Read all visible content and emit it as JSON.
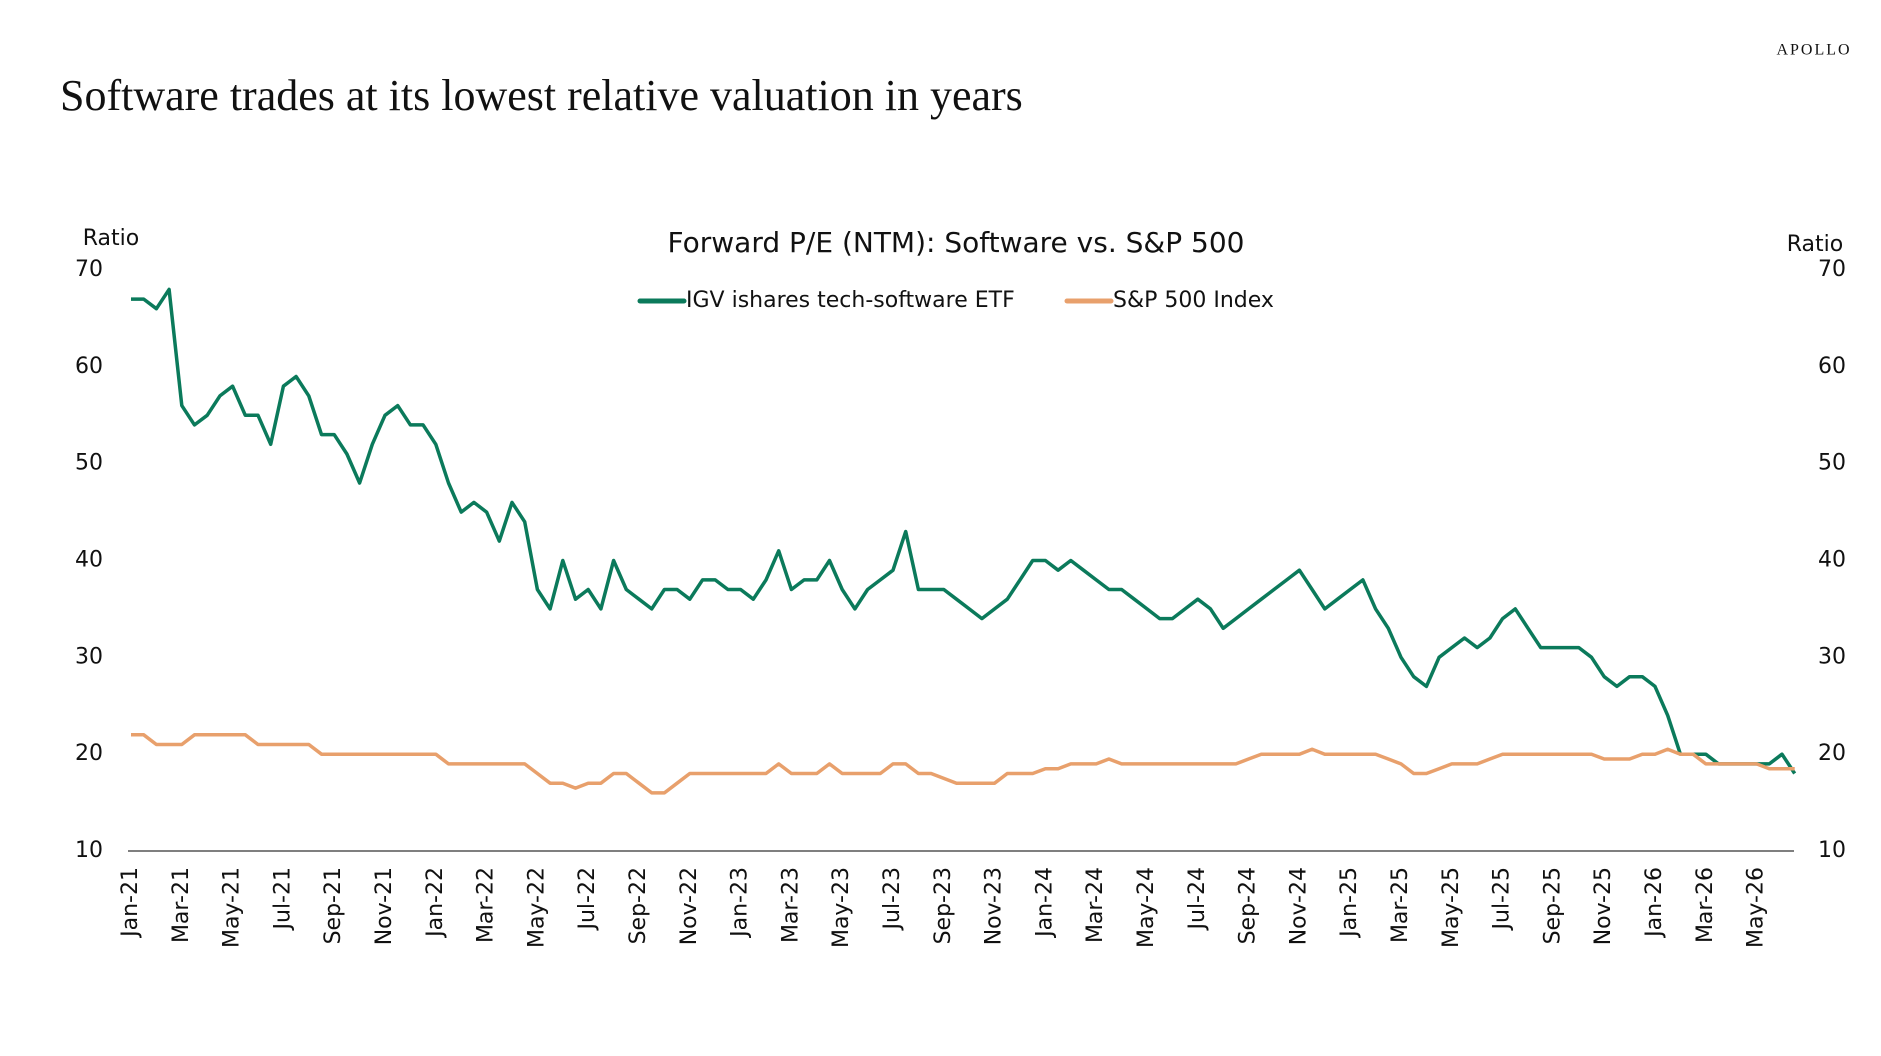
{
  "brand": "APOLLO",
  "chart_data": {
    "type": "line",
    "title": "Software trades at its lowest relative valuation in years",
    "subtitle": "Forward P/E (NTM): Software vs. S&P 500",
    "y_label": "Ratio",
    "y2_label": "Ratio",
    "categories": [
      "Jan-21",
      null,
      null,
      null,
      "Mar-21",
      null,
      null,
      null,
      "May-21",
      null,
      null,
      null,
      "Jul-21",
      null,
      null,
      null,
      "Sep-21",
      null,
      null,
      null,
      "Nov-21",
      null,
      null,
      null,
      "Jan-22",
      null,
      null,
      null,
      "Mar-22",
      null,
      null,
      null,
      "May-22",
      null,
      null,
      null,
      "Jul-22",
      null,
      null,
      null,
      "Sep-22",
      null,
      null,
      null,
      "Nov-22",
      null,
      null,
      null,
      "Jan-23",
      null,
      null,
      null,
      "Mar-23",
      null,
      null,
      null,
      "May-23",
      null,
      null,
      null,
      "Jul-23",
      null,
      null,
      null,
      "Sep-23",
      null,
      null,
      null,
      "Nov-23",
      null,
      null,
      null,
      "Jan-24",
      null,
      null,
      null,
      "Mar-24",
      null,
      null,
      null,
      "May-24",
      null,
      null,
      null,
      "Jul-24",
      null,
      null,
      null,
      "Sep-24",
      null,
      null,
      null,
      "Nov-24",
      null,
      null,
      null,
      "Jan-25",
      null,
      null,
      null,
      "Mar-25",
      null,
      null,
      null,
      "May-25",
      null,
      null,
      null,
      "Jul-25",
      null,
      null,
      null,
      "Sep-25",
      null,
      null,
      null,
      "Nov-25",
      null,
      null,
      null,
      "Jan-26",
      null,
      null,
      null,
      "Mar-26",
      null,
      null,
      null,
      "May-26",
      null,
      null,
      null
    ],
    "series": [
      {
        "name": "IGV ishares tech-software ETF",
        "color": "#0b7a5b",
        "values": [
          67,
          67,
          66,
          68,
          56,
          54,
          55,
          57,
          58,
          55,
          55,
          52,
          58,
          59,
          57,
          53,
          53,
          51,
          48,
          52,
          55,
          56,
          54,
          54,
          52,
          48,
          45,
          46,
          45,
          42,
          46,
          44,
          37,
          35,
          40,
          36,
          37,
          35,
          40,
          37,
          36,
          35,
          37,
          37,
          36,
          38,
          38,
          37,
          37,
          36,
          38,
          41,
          37,
          38,
          38,
          40,
          37,
          35,
          37,
          38,
          39,
          43,
          37,
          37,
          37,
          36,
          35,
          34,
          35,
          36,
          38,
          40,
          40,
          39,
          40,
          39,
          38,
          37,
          37,
          36,
          35,
          34,
          34,
          35,
          36,
          35,
          33,
          34,
          35,
          36,
          37,
          38,
          39,
          37,
          35,
          36,
          37,
          38,
          35,
          33,
          30,
          28,
          27,
          30,
          31,
          32,
          31,
          32,
          34,
          35,
          33,
          31,
          31,
          31,
          31,
          30,
          28,
          27,
          28,
          28,
          27,
          24,
          20,
          20,
          20,
          19,
          19,
          19,
          19,
          19,
          20,
          18
        ]
      },
      {
        "name": "S&P 500 Index",
        "color": "#e8a06c",
        "values": [
          22,
          22,
          21,
          21,
          21,
          22,
          22,
          22,
          22,
          22,
          21,
          21,
          21,
          21,
          21,
          20,
          20,
          20,
          20,
          20,
          20,
          20,
          20,
          20,
          20,
          19,
          19,
          19,
          19,
          19,
          19,
          19,
          18,
          17,
          17,
          16.5,
          17,
          17,
          18,
          18,
          17,
          16,
          16,
          17,
          18,
          18,
          18,
          18,
          18,
          18,
          18,
          19,
          18,
          18,
          18,
          19,
          18,
          18,
          18,
          18,
          19,
          19,
          18,
          18,
          17.5,
          17,
          17,
          17,
          17,
          18,
          18,
          18,
          18.5,
          18.5,
          19,
          19,
          19,
          19.5,
          19,
          19,
          19,
          19,
          19,
          19,
          19,
          19,
          19,
          19,
          19.5,
          20,
          20,
          20,
          20,
          20.5,
          20,
          20,
          20,
          20,
          20,
          19.5,
          19,
          18,
          18,
          18.5,
          19,
          19,
          19,
          19.5,
          20,
          20,
          20,
          20,
          20,
          20,
          20,
          20,
          19.5,
          19.5,
          19.5,
          20,
          20,
          20.5,
          20,
          20,
          19,
          19,
          19,
          19,
          19,
          18.5,
          18.5,
          18.5
        ]
      }
    ],
    "ylim": [
      10,
      70
    ],
    "yticks": [
      10,
      20,
      30,
      40,
      50,
      60,
      70
    ],
    "y2lim": [
      10,
      70
    ],
    "y2ticks": [
      10,
      20,
      30,
      40,
      50,
      60,
      70
    ],
    "legend": "top"
  }
}
